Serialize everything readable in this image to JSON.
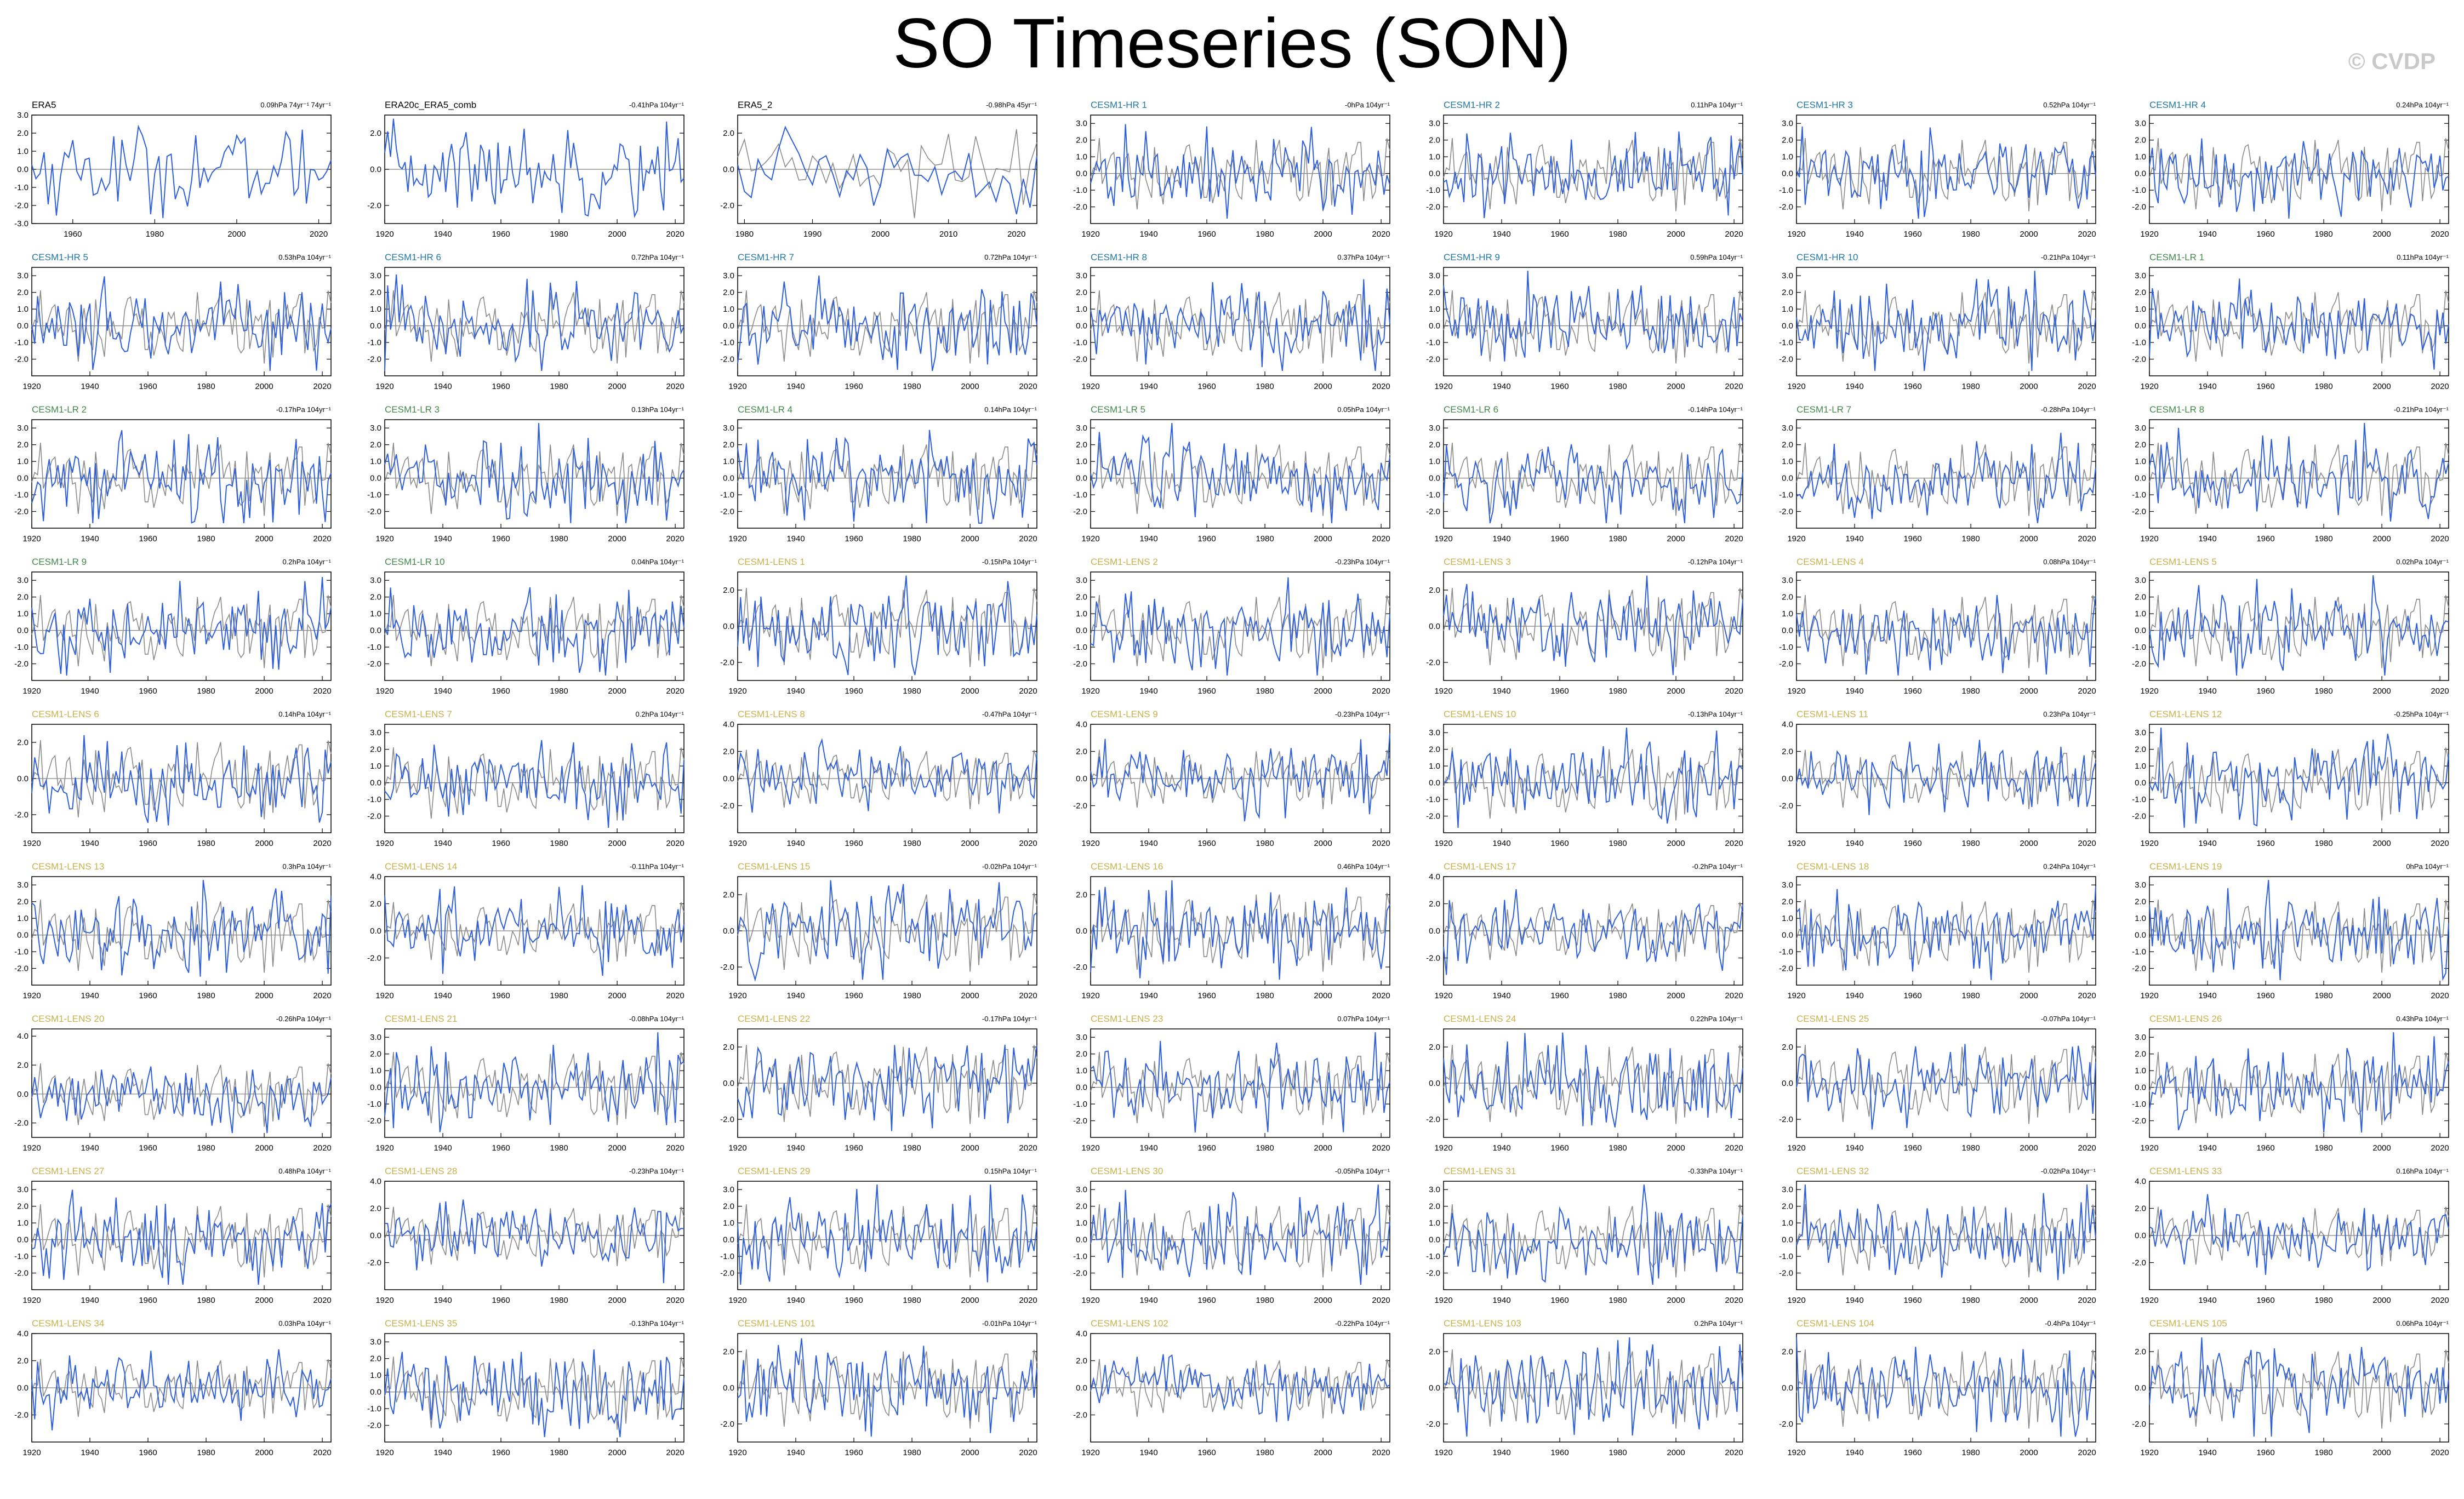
{
  "title": "SO Timeseries (SON)",
  "watermark": "© CVDP",
  "colors": {
    "model_line": "#3060d8",
    "obs_line": "#8a8a8a",
    "zero_line": "#808080",
    "obs_title": "#000000",
    "hr_title": "#1f77a4",
    "lr_title": "#3f8a49",
    "lens_title": "#c9b14a"
  },
  "chart_data": {
    "type": "line",
    "layout": "9 rows x 7 columns small multiples",
    "units": "hPa",
    "x_ticks_default": [
      "1920",
      "1940",
      "1960",
      "1980",
      "2000",
      "2020"
    ],
    "panels": [
      {
        "name": "ERA5",
        "group": "obs",
        "trend": "0.09hPa 74yr⁻¹ 74yr⁻¹",
        "start": 1950,
        "end": 2023,
        "ylim": [
          -3,
          3
        ],
        "yticks": [
          "3.0",
          "2.0",
          "1.0",
          "0.0",
          "-1.0",
          "-2.0",
          "-3.0"
        ],
        "xticks": [
          "1960",
          "1980",
          "2000",
          "2020"
        ],
        "obs_overlay": false
      },
      {
        "name": "ERA20c_ERA5_comb",
        "group": "obs",
        "trend": "-0.41hPa 104yr⁻¹",
        "start": 1920,
        "end": 2023,
        "ylim": [
          -3,
          3
        ],
        "yticks": [
          "2.0",
          "0.0",
          "-2.0"
        ],
        "obs_overlay": false
      },
      {
        "name": "ERA5_2",
        "group": "obs",
        "trend": "-0.98hPa 45yr⁻¹",
        "start": 1979,
        "end": 2023,
        "ylim": [
          -3,
          3
        ],
        "yticks": [
          "2.0",
          "0.0",
          "-2.0"
        ],
        "xticks": [
          "1980",
          "1990",
          "2000",
          "2010",
          "2020"
        ],
        "obs_overlay": true
      },
      {
        "name": "CESM1-HR 1",
        "group": "hr",
        "trend": "-0hPa 104yr⁻¹"
      },
      {
        "name": "CESM1-HR 2",
        "group": "hr",
        "trend": "0.11hPa 104yr⁻¹"
      },
      {
        "name": "CESM1-HR 3",
        "group": "hr",
        "trend": "0.52hPa 104yr⁻¹"
      },
      {
        "name": "CESM1-HR 4",
        "group": "hr",
        "trend": "0.24hPa 104yr⁻¹"
      },
      {
        "name": "CESM1-HR 5",
        "group": "hr",
        "trend": "0.53hPa 104yr⁻¹"
      },
      {
        "name": "CESM1-HR 6",
        "group": "hr",
        "trend": "0.72hPa 104yr⁻¹"
      },
      {
        "name": "CESM1-HR 7",
        "group": "hr",
        "trend": "0.72hPa 104yr⁻¹"
      },
      {
        "name": "CESM1-HR 8",
        "group": "hr",
        "trend": "0.37hPa 104yr⁻¹"
      },
      {
        "name": "CESM1-HR 9",
        "group": "hr",
        "trend": "0.59hPa 104yr⁻¹"
      },
      {
        "name": "CESM1-HR 10",
        "group": "hr",
        "trend": "-0.21hPa 104yr⁻¹"
      },
      {
        "name": "CESM1-LR 1",
        "group": "lr",
        "trend": "0.11hPa 104yr⁻¹"
      },
      {
        "name": "CESM1-LR 2",
        "group": "lr",
        "trend": "-0.17hPa 104yr⁻¹"
      },
      {
        "name": "CESM1-LR 3",
        "group": "lr",
        "trend": "0.13hPa 104yr⁻¹"
      },
      {
        "name": "CESM1-LR 4",
        "group": "lr",
        "trend": "0.14hPa 104yr⁻¹"
      },
      {
        "name": "CESM1-LR 5",
        "group": "lr",
        "trend": "0.05hPa 104yr⁻¹"
      },
      {
        "name": "CESM1-LR 6",
        "group": "lr",
        "trend": "-0.14hPa 104yr⁻¹"
      },
      {
        "name": "CESM1-LR 7",
        "group": "lr",
        "trend": "-0.28hPa 104yr⁻¹"
      },
      {
        "name": "CESM1-LR 8",
        "group": "lr",
        "trend": "-0.21hPa 104yr⁻¹"
      },
      {
        "name": "CESM1-LR 9",
        "group": "lr",
        "trend": "0.2hPa 104yr⁻¹"
      },
      {
        "name": "CESM1-LR 10",
        "group": "lr",
        "trend": "0.04hPa 104yr⁻¹"
      },
      {
        "name": "CESM1-LENS 1",
        "group": "lens",
        "trend": "-0.15hPa 104yr⁻¹",
        "ylim": [
          -3,
          3
        ],
        "yticks": [
          "2.0",
          "0.0",
          "-2.0"
        ]
      },
      {
        "name": "CESM1-LENS 2",
        "group": "lens",
        "trend": "-0.23hPa 104yr⁻¹"
      },
      {
        "name": "CESM1-LENS 3",
        "group": "lens",
        "trend": "-0.12hPa 104yr⁻¹",
        "ylim": [
          -3,
          3
        ],
        "yticks": [
          "2.0",
          "0.0",
          "-2.0"
        ]
      },
      {
        "name": "CESM1-LENS 4",
        "group": "lens",
        "trend": "0.08hPa 104yr⁻¹"
      },
      {
        "name": "CESM1-LENS 5",
        "group": "lens",
        "trend": "0.02hPa 104yr⁻¹"
      },
      {
        "name": "CESM1-LENS 6",
        "group": "lens",
        "trend": "0.14hPa 104yr⁻¹",
        "ylim": [
          -3,
          3
        ],
        "yticks": [
          "2.0",
          "0.0",
          "-2.0"
        ]
      },
      {
        "name": "CESM1-LENS 7",
        "group": "lens",
        "trend": "0.2hPa 104yr⁻¹"
      },
      {
        "name": "CESM1-LENS 8",
        "group": "lens",
        "trend": "-0.47hPa 104yr⁻¹",
        "ylim": [
          -4,
          4
        ],
        "yticks": [
          "4.0",
          "2.0",
          "0.0",
          "-2.0"
        ]
      },
      {
        "name": "CESM1-LENS 9",
        "group": "lens",
        "trend": "-0.23hPa 104yr⁻¹",
        "ylim": [
          -4,
          4
        ],
        "yticks": [
          "4.0",
          "2.0",
          "0.0",
          "-2.0"
        ]
      },
      {
        "name": "CESM1-LENS 10",
        "group": "lens",
        "trend": "-0.13hPa 104yr⁻¹"
      },
      {
        "name": "CESM1-LENS 11",
        "group": "lens",
        "trend": "0.23hPa 104yr⁻¹",
        "ylim": [
          -4,
          4
        ],
        "yticks": [
          "4.0",
          "2.0",
          "0.0",
          "-2.0"
        ]
      },
      {
        "name": "CESM1-LENS 12",
        "group": "lens",
        "trend": "-0.25hPa 104yr⁻¹"
      },
      {
        "name": "CESM1-LENS 13",
        "group": "lens",
        "trend": "0.3hPa 104yr⁻¹"
      },
      {
        "name": "CESM1-LENS 14",
        "group": "lens",
        "trend": "-0.11hPa 104yr⁻¹",
        "ylim": [
          -4,
          4
        ],
        "yticks": [
          "4.0",
          "2.0",
          "0.0",
          "-2.0"
        ]
      },
      {
        "name": "CESM1-LENS 15",
        "group": "lens",
        "trend": "-0.02hPa 104yr⁻¹",
        "ylim": [
          -3,
          3
        ],
        "yticks": [
          "2.0",
          "0.0",
          "-2.0"
        ]
      },
      {
        "name": "CESM1-LENS 16",
        "group": "lens",
        "trend": "0.46hPa 104yr⁻¹",
        "ylim": [
          -3,
          3
        ],
        "yticks": [
          "2.0",
          "0.0",
          "-2.0"
        ]
      },
      {
        "name": "CESM1-LENS 17",
        "group": "lens",
        "trend": "-0.2hPa 104yr⁻¹",
        "ylim": [
          -4,
          4
        ],
        "yticks": [
          "4.0",
          "2.0",
          "0.0",
          "-2.0"
        ]
      },
      {
        "name": "CESM1-LENS 18",
        "group": "lens",
        "trend": "0.24hPa 104yr⁻¹"
      },
      {
        "name": "CESM1-LENS 19",
        "group": "lens",
        "trend": "0hPa 104yr⁻¹"
      },
      {
        "name": "CESM1-LENS 20",
        "group": "lens",
        "trend": "-0.26hPa 104yr⁻¹",
        "ylim": [
          -3,
          4.5
        ],
        "yticks": [
          "4.0",
          "2.0",
          "0.0",
          "-2.0"
        ]
      },
      {
        "name": "CESM1-LENS 21",
        "group": "lens",
        "trend": "-0.08hPa 104yr⁻¹"
      },
      {
        "name": "CESM1-LENS 22",
        "group": "lens",
        "trend": "-0.17hPa 104yr⁻¹",
        "ylim": [
          -3,
          3
        ],
        "yticks": [
          "2.0",
          "0.0",
          "-2.0"
        ]
      },
      {
        "name": "CESM1-LENS 23",
        "group": "lens",
        "trend": "0.07hPa 104yr⁻¹"
      },
      {
        "name": "CESM1-LENS 24",
        "group": "lens",
        "trend": "0.22hPa 104yr⁻¹",
        "ylim": [
          -3,
          3
        ],
        "yticks": [
          "2.0",
          "0.0",
          "-2.0"
        ]
      },
      {
        "name": "CESM1-LENS 25",
        "group": "lens",
        "trend": "-0.07hPa 104yr⁻¹",
        "ylim": [
          -3,
          3
        ],
        "yticks": [
          "2.0",
          "0.0",
          "-2.0"
        ]
      },
      {
        "name": "CESM1-LENS 26",
        "group": "lens",
        "trend": "0.43hPa 104yr⁻¹"
      },
      {
        "name": "CESM1-LENS 27",
        "group": "lens",
        "trend": "0.48hPa 104yr⁻¹"
      },
      {
        "name": "CESM1-LENS 28",
        "group": "lens",
        "trend": "-0.23hPa 104yr⁻¹",
        "ylim": [
          -4,
          4
        ],
        "yticks": [
          "4.0",
          "2.0",
          "0.0",
          "-2.0"
        ]
      },
      {
        "name": "CESM1-LENS 29",
        "group": "lens",
        "trend": "0.15hPa 104yr⁻¹"
      },
      {
        "name": "CESM1-LENS 30",
        "group": "lens",
        "trend": "-0.05hPa 104yr⁻¹"
      },
      {
        "name": "CESM1-LENS 31",
        "group": "lens",
        "trend": "-0.33hPa 104yr⁻¹"
      },
      {
        "name": "CESM1-LENS 32",
        "group": "lens",
        "trend": "-0.02hPa 104yr⁻¹"
      },
      {
        "name": "CESM1-LENS 33",
        "group": "lens",
        "trend": "0.16hPa 104yr⁻¹",
        "ylim": [
          -4,
          4
        ],
        "yticks": [
          "4.0",
          "2.0",
          "0.0",
          "-2.0"
        ]
      },
      {
        "name": "CESM1-LENS 34",
        "group": "lens",
        "trend": "0.03hPa 104yr⁻¹",
        "ylim": [
          -4,
          4
        ],
        "yticks": [
          "4.0",
          "2.0",
          "0.0",
          "-2.0"
        ]
      },
      {
        "name": "CESM1-LENS 35",
        "group": "lens",
        "trend": "-0.13hPa 104yr⁻¹"
      },
      {
        "name": "CESM1-LENS 101",
        "group": "lens",
        "trend": "-0.01hPa 104yr⁻¹",
        "ylim": [
          -3,
          3
        ],
        "yticks": [
          "2.0",
          "0.0",
          "-2.0"
        ]
      },
      {
        "name": "CESM1-LENS 102",
        "group": "lens",
        "trend": "-0.22hPa 104yr⁻¹",
        "ylim": [
          -4,
          4
        ],
        "yticks": [
          "4.0",
          "2.0",
          "0.0",
          "-2.0"
        ]
      },
      {
        "name": "CESM1-LENS 103",
        "group": "lens",
        "trend": "0.2hPa 104yr⁻¹",
        "ylim": [
          -3,
          3
        ],
        "yticks": [
          "2.0",
          "0.0",
          "-2.0"
        ]
      },
      {
        "name": "CESM1-LENS 104",
        "group": "lens",
        "trend": "-0.4hPa 104yr⁻¹",
        "ylim": [
          -3,
          3
        ],
        "yticks": [
          "2.0",
          "0.0",
          "-2.0"
        ]
      },
      {
        "name": "CESM1-LENS 105",
        "group": "lens",
        "trend": "0.06hPa 104yr⁻¹",
        "ylim": [
          -3,
          3
        ],
        "yticks": [
          "2.0",
          "0.0",
          "-2.0"
        ]
      }
    ],
    "defaults": {
      "start": 1920,
      "end": 2023,
      "ylim": [
        -3,
        3.5
      ],
      "yticks": [
        "3.0",
        "2.0",
        "1.0",
        "0.0",
        "-1.0",
        "-2.0"
      ],
      "obs_overlay": true
    }
  }
}
